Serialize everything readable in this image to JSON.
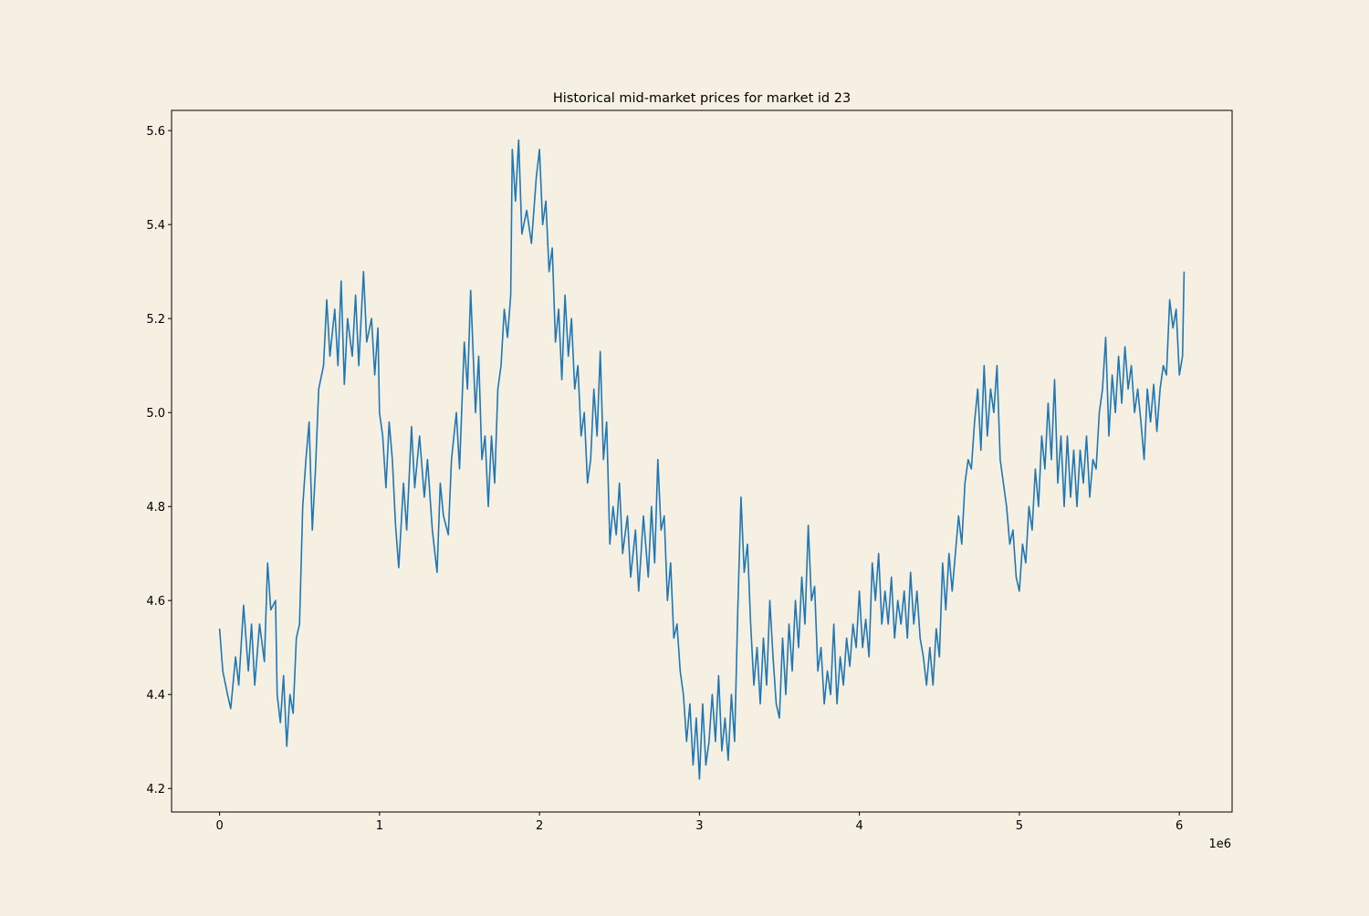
{
  "chart_data": {
    "type": "line",
    "title": "Historical mid-market prices for market id 23",
    "xlabel": "",
    "ylabel": "",
    "x_offset_label": "1e6",
    "xlim": [
      -0.3,
      6.33
    ],
    "ylim": [
      4.15,
      5.643
    ],
    "xticks": [
      "0",
      "1",
      "2",
      "3",
      "4",
      "5",
      "6"
    ],
    "yticks": [
      "4.2",
      "4.4",
      "4.6",
      "4.8",
      "5.0",
      "5.2",
      "5.4",
      "5.6"
    ],
    "grid": false,
    "line_color": "#1f77b4",
    "background_color": "#f6f0e3",
    "points": [
      [
        0,
        4.54
      ],
      [
        0.02,
        4.45
      ],
      [
        0.05,
        4.4
      ],
      [
        0.07,
        4.37
      ],
      [
        0.1,
        4.48
      ],
      [
        0.12,
        4.42
      ],
      [
        0.15,
        4.59
      ],
      [
        0.18,
        4.45
      ],
      [
        0.2,
        4.55
      ],
      [
        0.22,
        4.42
      ],
      [
        0.25,
        4.55
      ],
      [
        0.28,
        4.47
      ],
      [
        0.3,
        4.68
      ],
      [
        0.32,
        4.58
      ],
      [
        0.35,
        4.6
      ],
      [
        0.36,
        4.4
      ],
      [
        0.38,
        4.34
      ],
      [
        0.4,
        4.44
      ],
      [
        0.42,
        4.29
      ],
      [
        0.44,
        4.4
      ],
      [
        0.46,
        4.36
      ],
      [
        0.48,
        4.52
      ],
      [
        0.5,
        4.55
      ],
      [
        0.52,
        4.8
      ],
      [
        0.54,
        4.9
      ],
      [
        0.56,
        4.98
      ],
      [
        0.58,
        4.75
      ],
      [
        0.6,
        4.88
      ],
      [
        0.62,
        5.05
      ],
      [
        0.65,
        5.1
      ],
      [
        0.67,
        5.24
      ],
      [
        0.69,
        5.12
      ],
      [
        0.72,
        5.22
      ],
      [
        0.74,
        5.1
      ],
      [
        0.76,
        5.28
      ],
      [
        0.78,
        5.06
      ],
      [
        0.8,
        5.2
      ],
      [
        0.83,
        5.12
      ],
      [
        0.85,
        5.25
      ],
      [
        0.87,
        5.1
      ],
      [
        0.9,
        5.3
      ],
      [
        0.92,
        5.15
      ],
      [
        0.95,
        5.2
      ],
      [
        0.97,
        5.08
      ],
      [
        0.99,
        5.18
      ],
      [
        1.0,
        5.0
      ],
      [
        1.02,
        4.95
      ],
      [
        1.04,
        4.84
      ],
      [
        1.06,
        4.98
      ],
      [
        1.08,
        4.9
      ],
      [
        1.1,
        4.76
      ],
      [
        1.12,
        4.67
      ],
      [
        1.15,
        4.85
      ],
      [
        1.17,
        4.75
      ],
      [
        1.2,
        4.97
      ],
      [
        1.22,
        4.84
      ],
      [
        1.25,
        4.95
      ],
      [
        1.28,
        4.82
      ],
      [
        1.3,
        4.9
      ],
      [
        1.33,
        4.75
      ],
      [
        1.36,
        4.66
      ],
      [
        1.38,
        4.85
      ],
      [
        1.4,
        4.78
      ],
      [
        1.43,
        4.74
      ],
      [
        1.45,
        4.9
      ],
      [
        1.48,
        5.0
      ],
      [
        1.5,
        4.88
      ],
      [
        1.53,
        5.15
      ],
      [
        1.55,
        5.05
      ],
      [
        1.57,
        5.26
      ],
      [
        1.6,
        5.0
      ],
      [
        1.62,
        5.12
      ],
      [
        1.64,
        4.9
      ],
      [
        1.66,
        4.95
      ],
      [
        1.68,
        4.8
      ],
      [
        1.7,
        4.95
      ],
      [
        1.72,
        4.85
      ],
      [
        1.74,
        5.05
      ],
      [
        1.76,
        5.1
      ],
      [
        1.78,
        5.22
      ],
      [
        1.8,
        5.16
      ],
      [
        1.82,
        5.25
      ],
      [
        1.83,
        5.56
      ],
      [
        1.85,
        5.45
      ],
      [
        1.87,
        5.58
      ],
      [
        1.89,
        5.38
      ],
      [
        1.92,
        5.43
      ],
      [
        1.95,
        5.36
      ],
      [
        1.98,
        5.5
      ],
      [
        2.0,
        5.56
      ],
      [
        2.02,
        5.4
      ],
      [
        2.04,
        5.45
      ],
      [
        2.06,
        5.3
      ],
      [
        2.08,
        5.35
      ],
      [
        2.1,
        5.15
      ],
      [
        2.12,
        5.22
      ],
      [
        2.14,
        5.07
      ],
      [
        2.16,
        5.25
      ],
      [
        2.18,
        5.12
      ],
      [
        2.2,
        5.2
      ],
      [
        2.22,
        5.05
      ],
      [
        2.24,
        5.1
      ],
      [
        2.26,
        4.95
      ],
      [
        2.28,
        5.0
      ],
      [
        2.3,
        4.85
      ],
      [
        2.32,
        4.9
      ],
      [
        2.34,
        5.05
      ],
      [
        2.36,
        4.95
      ],
      [
        2.38,
        5.13
      ],
      [
        2.4,
        4.9
      ],
      [
        2.42,
        4.98
      ],
      [
        2.44,
        4.72
      ],
      [
        2.46,
        4.8
      ],
      [
        2.48,
        4.74
      ],
      [
        2.5,
        4.85
      ],
      [
        2.52,
        4.7
      ],
      [
        2.55,
        4.78
      ],
      [
        2.57,
        4.65
      ],
      [
        2.6,
        4.75
      ],
      [
        2.62,
        4.62
      ],
      [
        2.65,
        4.78
      ],
      [
        2.68,
        4.65
      ],
      [
        2.7,
        4.8
      ],
      [
        2.72,
        4.68
      ],
      [
        2.74,
        4.9
      ],
      [
        2.76,
        4.75
      ],
      [
        2.78,
        4.78
      ],
      [
        2.8,
        4.6
      ],
      [
        2.82,
        4.68
      ],
      [
        2.84,
        4.52
      ],
      [
        2.86,
        4.55
      ],
      [
        2.88,
        4.45
      ],
      [
        2.9,
        4.4
      ],
      [
        2.92,
        4.3
      ],
      [
        2.94,
        4.38
      ],
      [
        2.96,
        4.25
      ],
      [
        2.98,
        4.35
      ],
      [
        3.0,
        4.22
      ],
      [
        3.02,
        4.38
      ],
      [
        3.04,
        4.25
      ],
      [
        3.06,
        4.3
      ],
      [
        3.08,
        4.4
      ],
      [
        3.1,
        4.3
      ],
      [
        3.12,
        4.44
      ],
      [
        3.14,
        4.28
      ],
      [
        3.16,
        4.35
      ],
      [
        3.18,
        4.26
      ],
      [
        3.2,
        4.4
      ],
      [
        3.22,
        4.3
      ],
      [
        3.24,
        4.58
      ],
      [
        3.26,
        4.82
      ],
      [
        3.28,
        4.66
      ],
      [
        3.3,
        4.72
      ],
      [
        3.32,
        4.55
      ],
      [
        3.34,
        4.42
      ],
      [
        3.36,
        4.5
      ],
      [
        3.38,
        4.38
      ],
      [
        3.4,
        4.52
      ],
      [
        3.42,
        4.42
      ],
      [
        3.44,
        4.6
      ],
      [
        3.46,
        4.48
      ],
      [
        3.48,
        4.38
      ],
      [
        3.5,
        4.35
      ],
      [
        3.52,
        4.52
      ],
      [
        3.54,
        4.4
      ],
      [
        3.56,
        4.55
      ],
      [
        3.58,
        4.45
      ],
      [
        3.6,
        4.6
      ],
      [
        3.62,
        4.5
      ],
      [
        3.64,
        4.65
      ],
      [
        3.66,
        4.55
      ],
      [
        3.68,
        4.76
      ],
      [
        3.7,
        4.6
      ],
      [
        3.72,
        4.63
      ],
      [
        3.74,
        4.45
      ],
      [
        3.76,
        4.5
      ],
      [
        3.78,
        4.38
      ],
      [
        3.8,
        4.45
      ],
      [
        3.82,
        4.4
      ],
      [
        3.84,
        4.55
      ],
      [
        3.86,
        4.38
      ],
      [
        3.88,
        4.48
      ],
      [
        3.9,
        4.42
      ],
      [
        3.92,
        4.52
      ],
      [
        3.94,
        4.46
      ],
      [
        3.96,
        4.55
      ],
      [
        3.98,
        4.5
      ],
      [
        4.0,
        4.62
      ],
      [
        4.02,
        4.5
      ],
      [
        4.04,
        4.56
      ],
      [
        4.06,
        4.48
      ],
      [
        4.08,
        4.68
      ],
      [
        4.1,
        4.6
      ],
      [
        4.12,
        4.7
      ],
      [
        4.14,
        4.55
      ],
      [
        4.16,
        4.62
      ],
      [
        4.18,
        4.55
      ],
      [
        4.2,
        4.65
      ],
      [
        4.22,
        4.52
      ],
      [
        4.24,
        4.6
      ],
      [
        4.26,
        4.55
      ],
      [
        4.28,
        4.62
      ],
      [
        4.3,
        4.52
      ],
      [
        4.32,
        4.66
      ],
      [
        4.34,
        4.55
      ],
      [
        4.36,
        4.62
      ],
      [
        4.38,
        4.52
      ],
      [
        4.4,
        4.48
      ],
      [
        4.42,
        4.42
      ],
      [
        4.44,
        4.5
      ],
      [
        4.46,
        4.42
      ],
      [
        4.48,
        4.54
      ],
      [
        4.5,
        4.48
      ],
      [
        4.52,
        4.68
      ],
      [
        4.54,
        4.58
      ],
      [
        4.56,
        4.7
      ],
      [
        4.58,
        4.62
      ],
      [
        4.6,
        4.7
      ],
      [
        4.62,
        4.78
      ],
      [
        4.64,
        4.72
      ],
      [
        4.66,
        4.85
      ],
      [
        4.68,
        4.9
      ],
      [
        4.7,
        4.88
      ],
      [
        4.72,
        4.98
      ],
      [
        4.74,
        5.05
      ],
      [
        4.76,
        4.92
      ],
      [
        4.78,
        5.1
      ],
      [
        4.8,
        4.95
      ],
      [
        4.82,
        5.05
      ],
      [
        4.84,
        5.0
      ],
      [
        4.86,
        5.1
      ],
      [
        4.88,
        4.9
      ],
      [
        4.9,
        4.85
      ],
      [
        4.92,
        4.8
      ],
      [
        4.94,
        4.72
      ],
      [
        4.96,
        4.75
      ],
      [
        4.98,
        4.65
      ],
      [
        5.0,
        4.62
      ],
      [
        5.02,
        4.72
      ],
      [
        5.04,
        4.68
      ],
      [
        5.06,
        4.8
      ],
      [
        5.08,
        4.75
      ],
      [
        5.1,
        4.88
      ],
      [
        5.12,
        4.8
      ],
      [
        5.14,
        4.95
      ],
      [
        5.16,
        4.88
      ],
      [
        5.18,
        5.02
      ],
      [
        5.2,
        4.9
      ],
      [
        5.22,
        5.07
      ],
      [
        5.24,
        4.85
      ],
      [
        5.26,
        4.95
      ],
      [
        5.28,
        4.8
      ],
      [
        5.3,
        4.95
      ],
      [
        5.32,
        4.82
      ],
      [
        5.34,
        4.92
      ],
      [
        5.36,
        4.8
      ],
      [
        5.38,
        4.92
      ],
      [
        5.4,
        4.85
      ],
      [
        5.42,
        4.95
      ],
      [
        5.44,
        4.82
      ],
      [
        5.46,
        4.9
      ],
      [
        5.48,
        4.88
      ],
      [
        5.5,
        5.0
      ],
      [
        5.52,
        5.05
      ],
      [
        5.54,
        5.16
      ],
      [
        5.56,
        4.95
      ],
      [
        5.58,
        5.08
      ],
      [
        5.6,
        5.0
      ],
      [
        5.62,
        5.12
      ],
      [
        5.64,
        5.02
      ],
      [
        5.66,
        5.14
      ],
      [
        5.68,
        5.05
      ],
      [
        5.7,
        5.1
      ],
      [
        5.72,
        5.0
      ],
      [
        5.74,
        5.05
      ],
      [
        5.76,
        4.98
      ],
      [
        5.78,
        4.9
      ],
      [
        5.8,
        5.05
      ],
      [
        5.82,
        4.98
      ],
      [
        5.84,
        5.06
      ],
      [
        5.86,
        4.96
      ],
      [
        5.88,
        5.05
      ],
      [
        5.9,
        5.1
      ],
      [
        5.92,
        5.08
      ],
      [
        5.94,
        5.24
      ],
      [
        5.96,
        5.18
      ],
      [
        5.98,
        5.22
      ],
      [
        6.0,
        5.08
      ],
      [
        6.02,
        5.12
      ],
      [
        6.03,
        5.3
      ]
    ]
  }
}
